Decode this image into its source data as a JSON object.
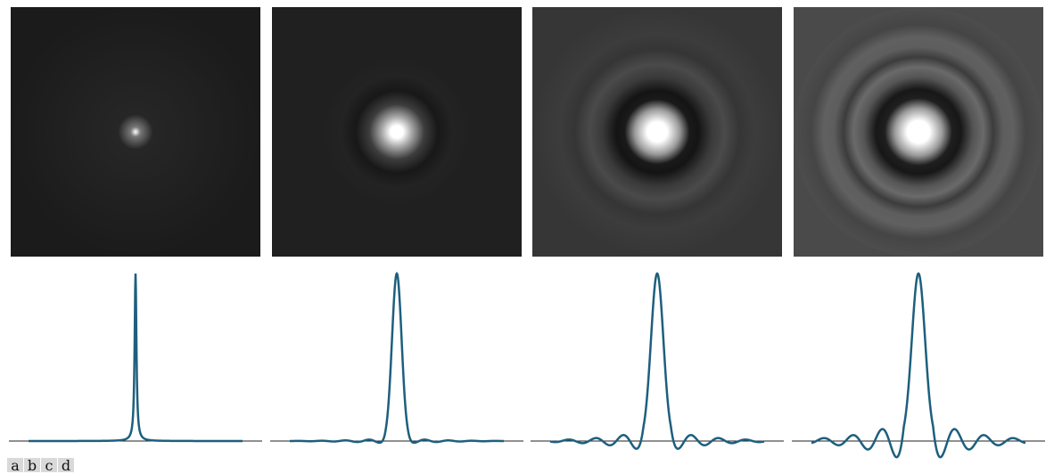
{
  "figure": {
    "labels": [
      "a",
      "b",
      "c",
      "d"
    ]
  },
  "panels": [
    {
      "label": "a",
      "image": {
        "background": "#1b1b1b",
        "core_scale": 0.012,
        "halo_scale": 0.05,
        "ring_strength": 0.05
      },
      "profile": {
        "type": "narrow-peak",
        "width": 0.01,
        "ring_amplitude": 0.0,
        "ring_freq": 0.0
      }
    },
    {
      "label": "b",
      "image": {
        "background": "#202020",
        "core_scale": 0.055,
        "halo_scale": 0.18,
        "ring_strength": 0.25
      },
      "profile": {
        "type": "peak",
        "width": 0.045,
        "ring_amplitude": 0.015,
        "ring_freq": 0.9
      }
    },
    {
      "label": "c",
      "image": {
        "background": "#363636",
        "core_scale": 0.085,
        "halo_scale": 0.28,
        "ring_strength": 0.45
      },
      "profile": {
        "type": "ringing-peak",
        "width": 0.058,
        "ring_amplitude": 0.06,
        "ring_freq": 1.0
      }
    },
    {
      "label": "d",
      "image": {
        "background": "#4a4a4a",
        "core_scale": 0.095,
        "halo_scale": 0.34,
        "ring_strength": 0.7
      },
      "profile": {
        "type": "ringing-peak",
        "width": 0.062,
        "ring_amplitude": 0.12,
        "ring_freq": 1.0
      }
    }
  ],
  "colors": {
    "curve": "#1d5f7e",
    "baseline": "#222222"
  }
}
